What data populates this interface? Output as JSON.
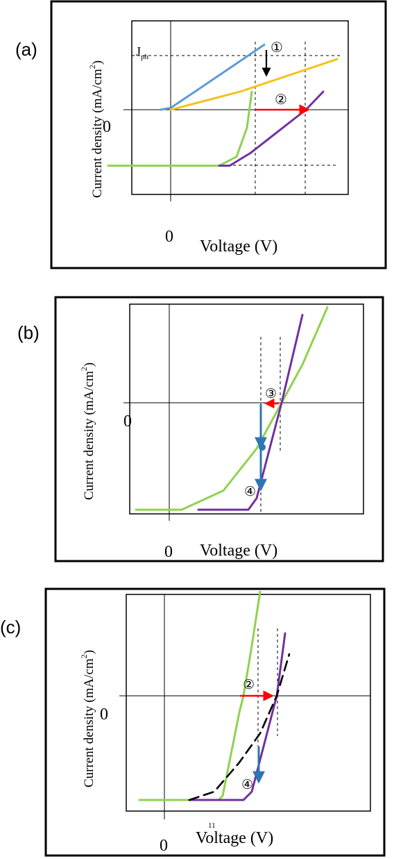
{
  "colors": {
    "blue": "#5b9bd5",
    "yellow": "#f4c21b",
    "green": "#8fd14f",
    "purple": "#7030a0",
    "red": "#ff0000",
    "arrow_blue": "#2e75b6",
    "black": "#000000"
  },
  "chart_data": [
    {
      "panel": "a",
      "panel_label": "(a)",
      "type": "line",
      "xlabel": "Voltage (V)",
      "ylabel": "Current density (mA/cm",
      "ylabel_sup": "2",
      "ylabel_tail": ")",
      "x_zero_label": "0",
      "y_zero_label": "0",
      "jph_label": "J",
      "jph_sub": "ph",
      "annotations": [
        "①",
        "②"
      ],
      "series": [
        {
          "color": "blue",
          "points": [
            [
              -0.15,
              0.0
            ],
            [
              0.0,
              0.05
            ],
            [
              0.35,
              0.5
            ],
            [
              1.35,
              1.8
            ]
          ]
        },
        {
          "color": "yellow",
          "points": [
            [
              0.0,
              0.0
            ],
            [
              1.0,
              0.5
            ],
            [
              2.4,
              1.4
            ]
          ]
        },
        {
          "color": "green",
          "points": [
            [
              -0.9,
              -1.55
            ],
            [
              0.7,
              -1.55
            ],
            [
              0.95,
              -1.3
            ],
            [
              1.1,
              -0.5
            ],
            [
              1.17,
              0.5
            ]
          ]
        },
        {
          "color": "purple",
          "points": [
            [
              0.7,
              -1.55
            ],
            [
              0.85,
              -1.55
            ],
            [
              1.15,
              -1.2
            ],
            [
              1.95,
              0.0
            ],
            [
              2.2,
              0.5
            ]
          ]
        }
      ]
    },
    {
      "panel": "b",
      "panel_label": "(b)",
      "type": "line",
      "xlabel": "Voltage (V)",
      "ylabel": "Current density (mA/cm",
      "ylabel_sup": "2",
      "ylabel_tail": ")",
      "x_zero_label": "0",
      "y_zero_label": "0",
      "annotations": [
        "③",
        "④"
      ],
      "series": [
        {
          "color": "green",
          "points": [
            [
              -0.4,
              -1.4
            ],
            [
              0.15,
              -1.4
            ],
            [
              0.65,
              -1.15
            ],
            [
              1.05,
              -0.6
            ],
            [
              1.35,
              0.0
            ],
            [
              1.6,
              0.5
            ],
            [
              1.9,
              1.25
            ]
          ]
        },
        {
          "color": "purple",
          "points": [
            [
              0.35,
              -1.4
            ],
            [
              0.95,
              -1.4
            ],
            [
              1.05,
              -1.25
            ],
            [
              1.35,
              0.0
            ],
            [
              1.6,
              1.15
            ]
          ]
        }
      ]
    },
    {
      "panel": "c",
      "panel_label": "(c)",
      "type": "line",
      "xlabel": "Voltage (V)",
      "ylabel": "Current density (mA/cm",
      "ylabel_sup": "2",
      "ylabel_tail": ")",
      "x_zero_label": "0",
      "y_zero_label": "0",
      "tick_note": "11",
      "annotations": [
        "②",
        "④"
      ],
      "series": [
        {
          "color": "green",
          "points": [
            [
              -0.3,
              -1.25
            ],
            [
              0.65,
              -1.25
            ],
            [
              0.7,
              -1.2
            ],
            [
              0.9,
              -0.2
            ],
            [
              0.95,
              0.0
            ],
            [
              1.05,
              0.6
            ],
            [
              1.15,
              1.25
            ]
          ]
        },
        {
          "color": "purple",
          "points": [
            [
              0.3,
              -1.25
            ],
            [
              0.95,
              -1.25
            ],
            [
              1.05,
              -1.15
            ],
            [
              1.35,
              0.0
            ],
            [
              1.45,
              0.75
            ]
          ]
        },
        {
          "color": "black",
          "dashed": true,
          "points": [
            [
              0.3,
              -1.25
            ],
            [
              0.6,
              -1.15
            ],
            [
              0.9,
              -0.8
            ],
            [
              1.15,
              -0.45
            ],
            [
              1.35,
              0.0
            ],
            [
              1.5,
              0.5
            ]
          ]
        }
      ]
    }
  ]
}
